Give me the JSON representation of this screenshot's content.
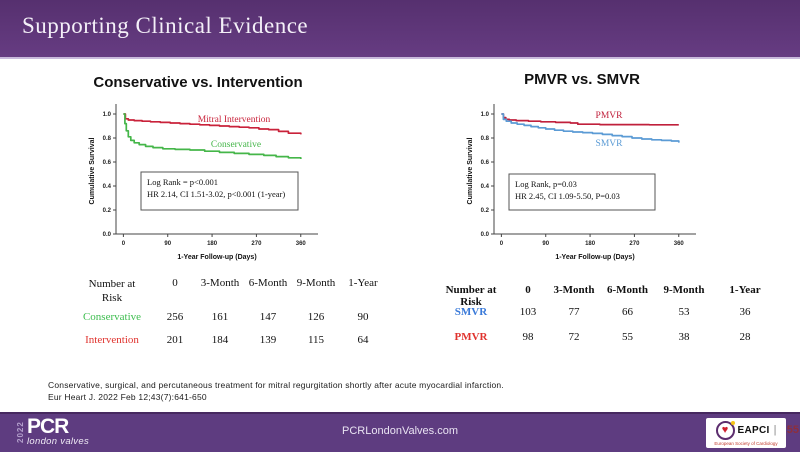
{
  "header": {
    "title": "Supporting Clinical Evidence"
  },
  "panels": {
    "left": {
      "title": "Conservative vs. Intervention"
    },
    "right": {
      "title": "PMVR  vs. SMVR"
    }
  },
  "chart_data": [
    {
      "type": "line",
      "title": "Conservative vs. Intervention",
      "xlabel": "1-Year Follow-up (Days)",
      "ylabel": "Cumulative Survival",
      "xticks": [
        0,
        90,
        180,
        270,
        360
      ],
      "yticks": [
        0.0,
        0.2,
        0.4,
        0.6,
        0.8,
        1.0
      ],
      "xlim": [
        -15,
        395
      ],
      "ylim": [
        0,
        1.05
      ],
      "grid": false,
      "legend_position": "inline-labels",
      "series": [
        {
          "name": "Mitral Intervention",
          "color": "#c9223a",
          "x": [
            0,
            4,
            10,
            22,
            38,
            55,
            75,
            95,
            115,
            135,
            155,
            175,
            195,
            215,
            235,
            255,
            275,
            295,
            315,
            335,
            360
          ],
          "y": [
            1.0,
            0.96,
            0.95,
            0.945,
            0.94,
            0.935,
            0.93,
            0.925,
            0.92,
            0.915,
            0.91,
            0.905,
            0.9,
            0.895,
            0.89,
            0.885,
            0.875,
            0.87,
            0.855,
            0.84,
            0.83
          ]
        },
        {
          "name": "Conservative",
          "color": "#45b649",
          "x": [
            0,
            3,
            6,
            10,
            15,
            22,
            32,
            45,
            60,
            80,
            105,
            135,
            165,
            195,
            225,
            255,
            285,
            310,
            335,
            360
          ],
          "y": [
            1.0,
            0.92,
            0.86,
            0.81,
            0.78,
            0.76,
            0.745,
            0.73,
            0.72,
            0.71,
            0.705,
            0.7,
            0.69,
            0.68,
            0.672,
            0.663,
            0.655,
            0.645,
            0.635,
            0.625
          ]
        }
      ],
      "annotation": [
        "Log Rank = p<0.001",
        "HR 2.14, CI 1.51-3.02, p<0.001 (1-year)"
      ]
    },
    {
      "type": "line",
      "title": "PMVR vs. SMVR",
      "xlabel": "1-Year Follow-up (Days)",
      "ylabel": "Cumulative Survival",
      "xticks": [
        0,
        90,
        180,
        270,
        360
      ],
      "yticks": [
        0.0,
        0.2,
        0.4,
        0.6,
        0.8,
        1.0
      ],
      "xlim": [
        -15,
        395
      ],
      "ylim": [
        0,
        1.05
      ],
      "grid": false,
      "legend_position": "inline-labels",
      "series": [
        {
          "name": "PMVR",
          "color": "#c0203c",
          "x": [
            0,
            4,
            9,
            16,
            30,
            55,
            80,
            110,
            140,
            155,
            200,
            250,
            300,
            360
          ],
          "y": [
            1.0,
            0.97,
            0.955,
            0.95,
            0.945,
            0.94,
            0.935,
            0.93,
            0.925,
            0.915,
            0.912,
            0.912,
            0.91,
            0.91
          ]
        },
        {
          "name": "SMVR",
          "color": "#5b9bd5",
          "x": [
            0,
            4,
            10,
            20,
            32,
            46,
            60,
            75,
            90,
            108,
            126,
            145,
            165,
            185,
            205,
            225,
            245,
            265,
            285,
            305,
            325,
            345,
            360
          ],
          "y": [
            1.0,
            0.955,
            0.94,
            0.925,
            0.915,
            0.905,
            0.895,
            0.885,
            0.875,
            0.865,
            0.857,
            0.85,
            0.845,
            0.838,
            0.83,
            0.82,
            0.812,
            0.8,
            0.792,
            0.785,
            0.78,
            0.775,
            0.762
          ]
        }
      ],
      "annotation": [
        "Log Rank, p=0.03",
        "HR 2.45, CI 1.09-5.50, P=0.03"
      ]
    }
  ],
  "left_table": {
    "headers": [
      "Number at\nRisk",
      "0",
      "3-Month",
      "6-Month",
      "9-Month",
      "1-Year"
    ],
    "rows": [
      {
        "label": "Conservative",
        "color": "#3dbd4e",
        "values": [
          "256",
          "161",
          "147",
          "126",
          "90"
        ]
      },
      {
        "label": "Intervention",
        "color": "#e0332e",
        "values": [
          "201",
          "184",
          "139",
          "115",
          "64"
        ]
      }
    ]
  },
  "right_table": {
    "headers": [
      "Number at Risk",
      "0",
      "3-Month",
      "6-Month",
      "9-Month",
      "1-Year"
    ],
    "rows": [
      {
        "label": "SMVR",
        "color": "#3a7ad9",
        "values": [
          "103",
          "77",
          "66",
          "53",
          "36"
        ]
      },
      {
        "label": "PMVR",
        "color": "#e0332e",
        "values": [
          "98",
          "72",
          "55",
          "38",
          "28"
        ]
      }
    ]
  },
  "citation": {
    "line1": "Conservative, surgical, and percutaneous treatment for mitral regurgitation  shortly after acute myocardial infarction.",
    "line2": "Eur Heart J. 2022 Feb 12;43(7):641-650"
  },
  "footer": {
    "year": "2022",
    "logo_main": "PCR",
    "logo_sub": "london valves",
    "website": "PCRLondonValves.com",
    "eapci_label": "EAPCI",
    "eapci_divider": "|",
    "eapci_sub": "European Society of Cardiology",
    "heart_icon": "♥",
    "page_number": "55"
  },
  "colors": {
    "header_purple": "#5a3274",
    "footer_purple": "#5e3c80",
    "divider_lavender": "#c9badd",
    "intervention_red": "#c9223a",
    "conservative_green": "#45b649",
    "pmvr_red": "#c0203c",
    "smvr_blue": "#5b9bd5",
    "page_number_red": "#8e2f3c"
  }
}
